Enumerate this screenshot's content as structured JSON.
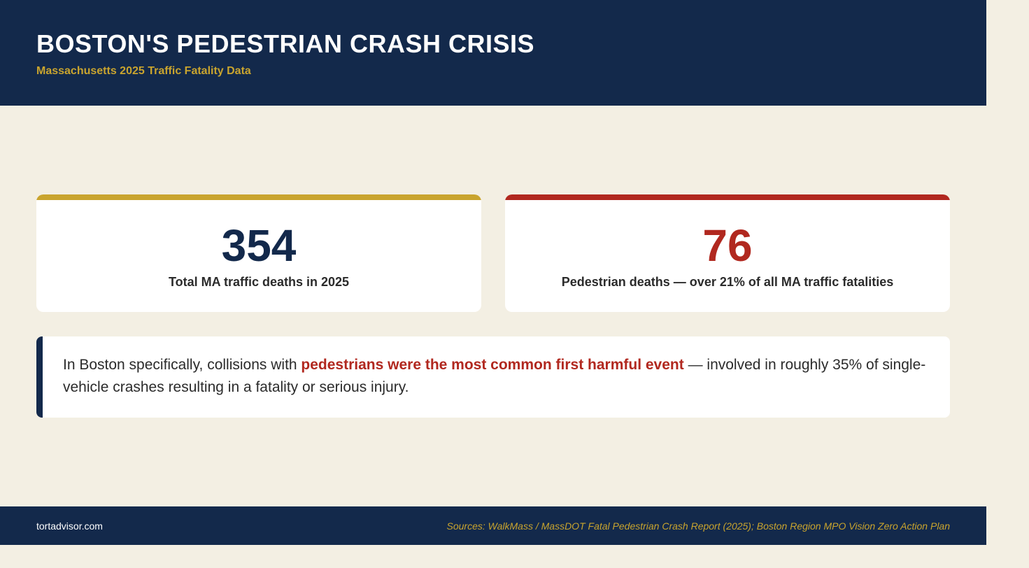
{
  "header": {
    "title": "BOSTON'S PEDESTRIAN CRASH CRISIS",
    "subtitle": "Massachusetts 2025 Traffic Fatality Data"
  },
  "stats": [
    {
      "value": "354",
      "label": "Total MA traffic deaths in 2025",
      "accent_color": "#c9a42e"
    },
    {
      "value": "76",
      "label": "Pedestrian deaths — over 21% of all MA traffic fatalities",
      "accent_color": "#b1281f"
    }
  ],
  "callout": {
    "text_before": "In Boston specifically, collisions with ",
    "highlight": "pedestrians were the most common first harmful event",
    "text_after": " — involved in roughly 35% of single-vehicle crashes resulting in a fatality or serious injury."
  },
  "footer": {
    "site": "tortadvisor.com",
    "sources": "Sources: WalkMass / MassDOT Fatal Pedestrian Crash Report (2025); Boston Region MPO Vision Zero Action Plan"
  },
  "colors": {
    "navy": "#13294b",
    "gold": "#c9a42e",
    "red": "#b1281f",
    "background": "#f3efe3"
  }
}
